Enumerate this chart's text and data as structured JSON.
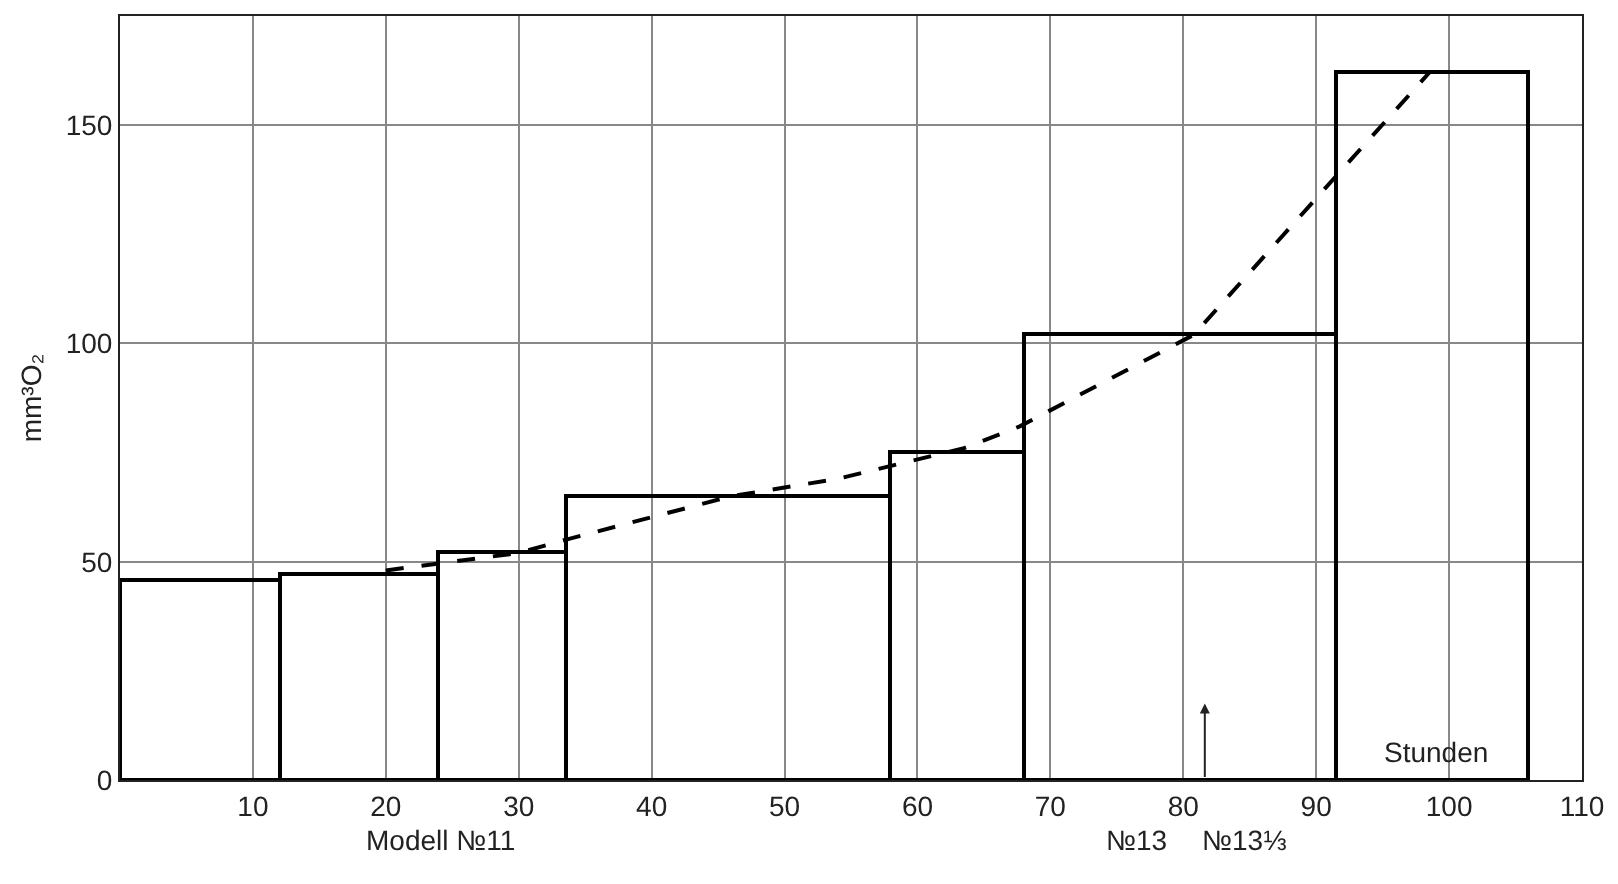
{
  "chart_data": {
    "type": "histogram",
    "xlabel": "Stunden",
    "ylabel": "mm³O₂",
    "bins": [
      0,
      12,
      24,
      33.5,
      58,
      68,
      91.5,
      106
    ],
    "values": [
      46,
      47,
      52,
      65,
      75,
      102,
      162
    ],
    "color": "#000000",
    "series": [
      {
        "type": "line",
        "color": "#000000",
        "line_style": "dashed",
        "x": [
          20,
          30,
          33.5,
          46,
          54,
          63.5,
          67.7,
          80.8,
          91.7,
          98.5
        ],
        "values": [
          48,
          52,
          55,
          65,
          69,
          76,
          81,
          102,
          139,
          162
        ]
      }
    ],
    "xlim": [
      0,
      110
    ],
    "xticks": [
      10,
      20,
      30,
      40,
      50,
      60,
      70,
      80,
      90,
      100,
      110
    ],
    "ylim": [
      0,
      175
    ],
    "yticks": [
      0,
      50,
      100,
      150
    ],
    "grid": true,
    "annotations": [
      "Modell №11",
      "№13",
      "№13⅓"
    ]
  }
}
